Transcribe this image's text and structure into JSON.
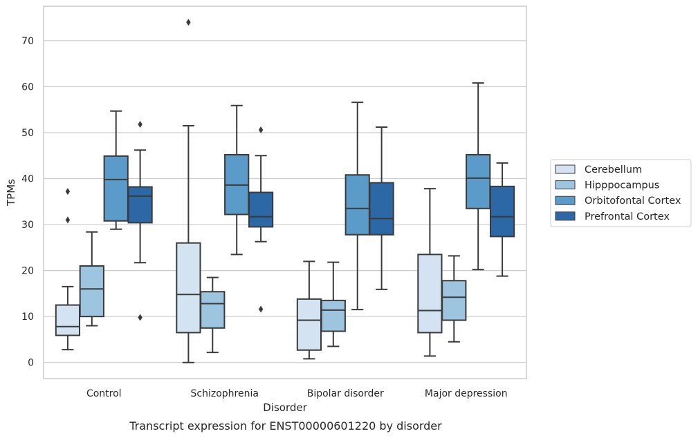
{
  "caption": "Transcript expression for ENST00000601220 by disorder",
  "chart_data": {
    "type": "box",
    "title": "",
    "xlabel": "Disorder",
    "ylabel": "TPMs",
    "ylim": [
      -3.5,
      77.5
    ],
    "yticks": [
      0,
      10,
      20,
      30,
      40,
      50,
      60,
      70
    ],
    "grid": "horizontal",
    "legend_position": "right",
    "categories": [
      "Control",
      "Schizophrenia",
      "Bipolar disorder",
      "Major depression"
    ],
    "series": [
      {
        "name": "Cerebellum",
        "color": "#d4e3f2",
        "boxes": [
          {
            "whislo": 2.8,
            "q1": 5.9,
            "med": 7.8,
            "q3": 12.5,
            "whishi": 16.5,
            "fliers": [
              31.0,
              37.2
            ]
          },
          {
            "whislo": 0.0,
            "q1": 6.5,
            "med": 14.8,
            "q3": 26.0,
            "whishi": 51.5,
            "fliers": [
              74.0
            ]
          },
          {
            "whislo": 0.8,
            "q1": 2.7,
            "med": 9.2,
            "q3": 13.8,
            "whishi": 22.0,
            "fliers": []
          },
          {
            "whislo": 1.4,
            "q1": 6.5,
            "med": 11.3,
            "q3": 23.5,
            "whishi": 37.8,
            "fliers": []
          }
        ]
      },
      {
        "name": "Hipppocampus",
        "color": "#9ec5df",
        "boxes": [
          {
            "whislo": 8.0,
            "q1": 10.0,
            "med": 16.0,
            "q3": 21.0,
            "whishi": 28.4,
            "fliers": []
          },
          {
            "whislo": 2.2,
            "q1": 7.5,
            "med": 12.8,
            "q3": 15.4,
            "whishi": 18.5,
            "fliers": []
          },
          {
            "whislo": 3.5,
            "q1": 6.8,
            "med": 11.4,
            "q3": 13.5,
            "whishi": 21.8,
            "fliers": []
          },
          {
            "whislo": 4.5,
            "q1": 9.2,
            "med": 14.2,
            "q3": 17.8,
            "whishi": 23.2,
            "fliers": []
          }
        ]
      },
      {
        "name": "Orbitofontal Cortex",
        "color": "#5b9bc9",
        "boxes": [
          {
            "whislo": 29.0,
            "q1": 30.8,
            "med": 39.8,
            "q3": 44.9,
            "whishi": 54.7,
            "fliers": []
          },
          {
            "whislo": 23.5,
            "q1": 32.2,
            "med": 38.6,
            "q3": 45.2,
            "whishi": 55.9,
            "fliers": []
          },
          {
            "whislo": 11.5,
            "q1": 27.8,
            "med": 33.5,
            "q3": 40.8,
            "whishi": 56.6,
            "fliers": []
          },
          {
            "whislo": 20.2,
            "q1": 33.5,
            "med": 40.1,
            "q3": 45.2,
            "whishi": 60.8,
            "fliers": []
          }
        ]
      },
      {
        "name": "Prefrontal Cortex",
        "color": "#2c68a5",
        "boxes": [
          {
            "whislo": 21.7,
            "q1": 30.4,
            "med": 36.2,
            "q3": 38.2,
            "whishi": 46.2,
            "fliers": [
              9.8,
              51.8
            ]
          },
          {
            "whislo": 26.3,
            "q1": 29.5,
            "med": 31.7,
            "q3": 37.0,
            "whishi": 45.0,
            "fliers": [
              11.6,
              50.6
            ]
          },
          {
            "whislo": 15.9,
            "q1": 27.8,
            "med": 31.3,
            "q3": 39.1,
            "whishi": 51.2,
            "fliers": []
          },
          {
            "whislo": 18.8,
            "q1": 27.4,
            "med": 31.7,
            "q3": 38.3,
            "whishi": 43.4,
            "fliers": []
          }
        ]
      }
    ]
  }
}
